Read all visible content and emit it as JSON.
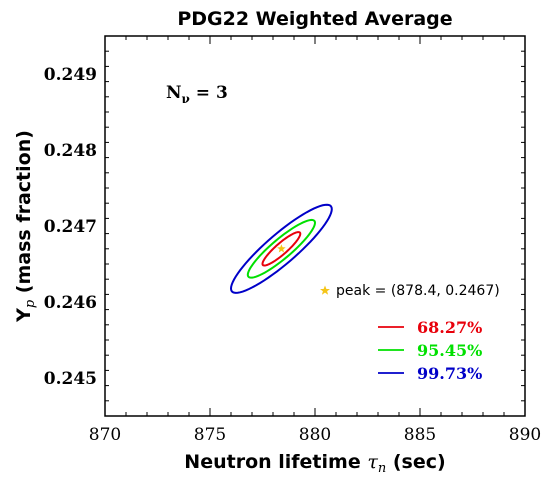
{
  "chart_data": {
    "type": "contour",
    "title": "PDG22 Weighted Average",
    "xlabel": "Neutron lifetime τ_n (sec)",
    "ylabel": "Y_p (mass fraction)",
    "xlim": [
      870,
      890
    ],
    "ylim": [
      0.2445,
      0.2495
    ],
    "xticks": [
      "870",
      "875",
      "880",
      "885",
      "890"
    ],
    "yticks": [
      "0.245",
      "0.246",
      "0.247",
      "0.248",
      "0.249"
    ],
    "xtick_values": [
      870,
      875,
      880,
      885,
      890
    ],
    "ytick_values": [
      0.245,
      0.246,
      0.247,
      0.248,
      0.249
    ],
    "annotation": "N_ν = 3",
    "peak": {
      "x": 878.4,
      "y": 0.2467,
      "label": "peak = (878.4, 0.2467)",
      "color": "#f5c518"
    },
    "series": [
      {
        "name": "68.27%",
        "color": "#e8000b",
        "center": [
          878.4,
          0.2467
        ],
        "half_width_x": 0.9,
        "half_width_y": 0.00022
      },
      {
        "name": "95.45%",
        "color": "#00e000",
        "center": [
          878.4,
          0.2467
        ],
        "half_width_x": 1.6,
        "half_width_y": 0.00038
      },
      {
        "name": "99.73%",
        "color": "#0000c8",
        "center": [
          878.4,
          0.2467
        ],
        "half_width_x": 2.4,
        "half_width_y": 0.00058
      }
    ],
    "grid": false,
    "legend_position": "lower-right"
  }
}
